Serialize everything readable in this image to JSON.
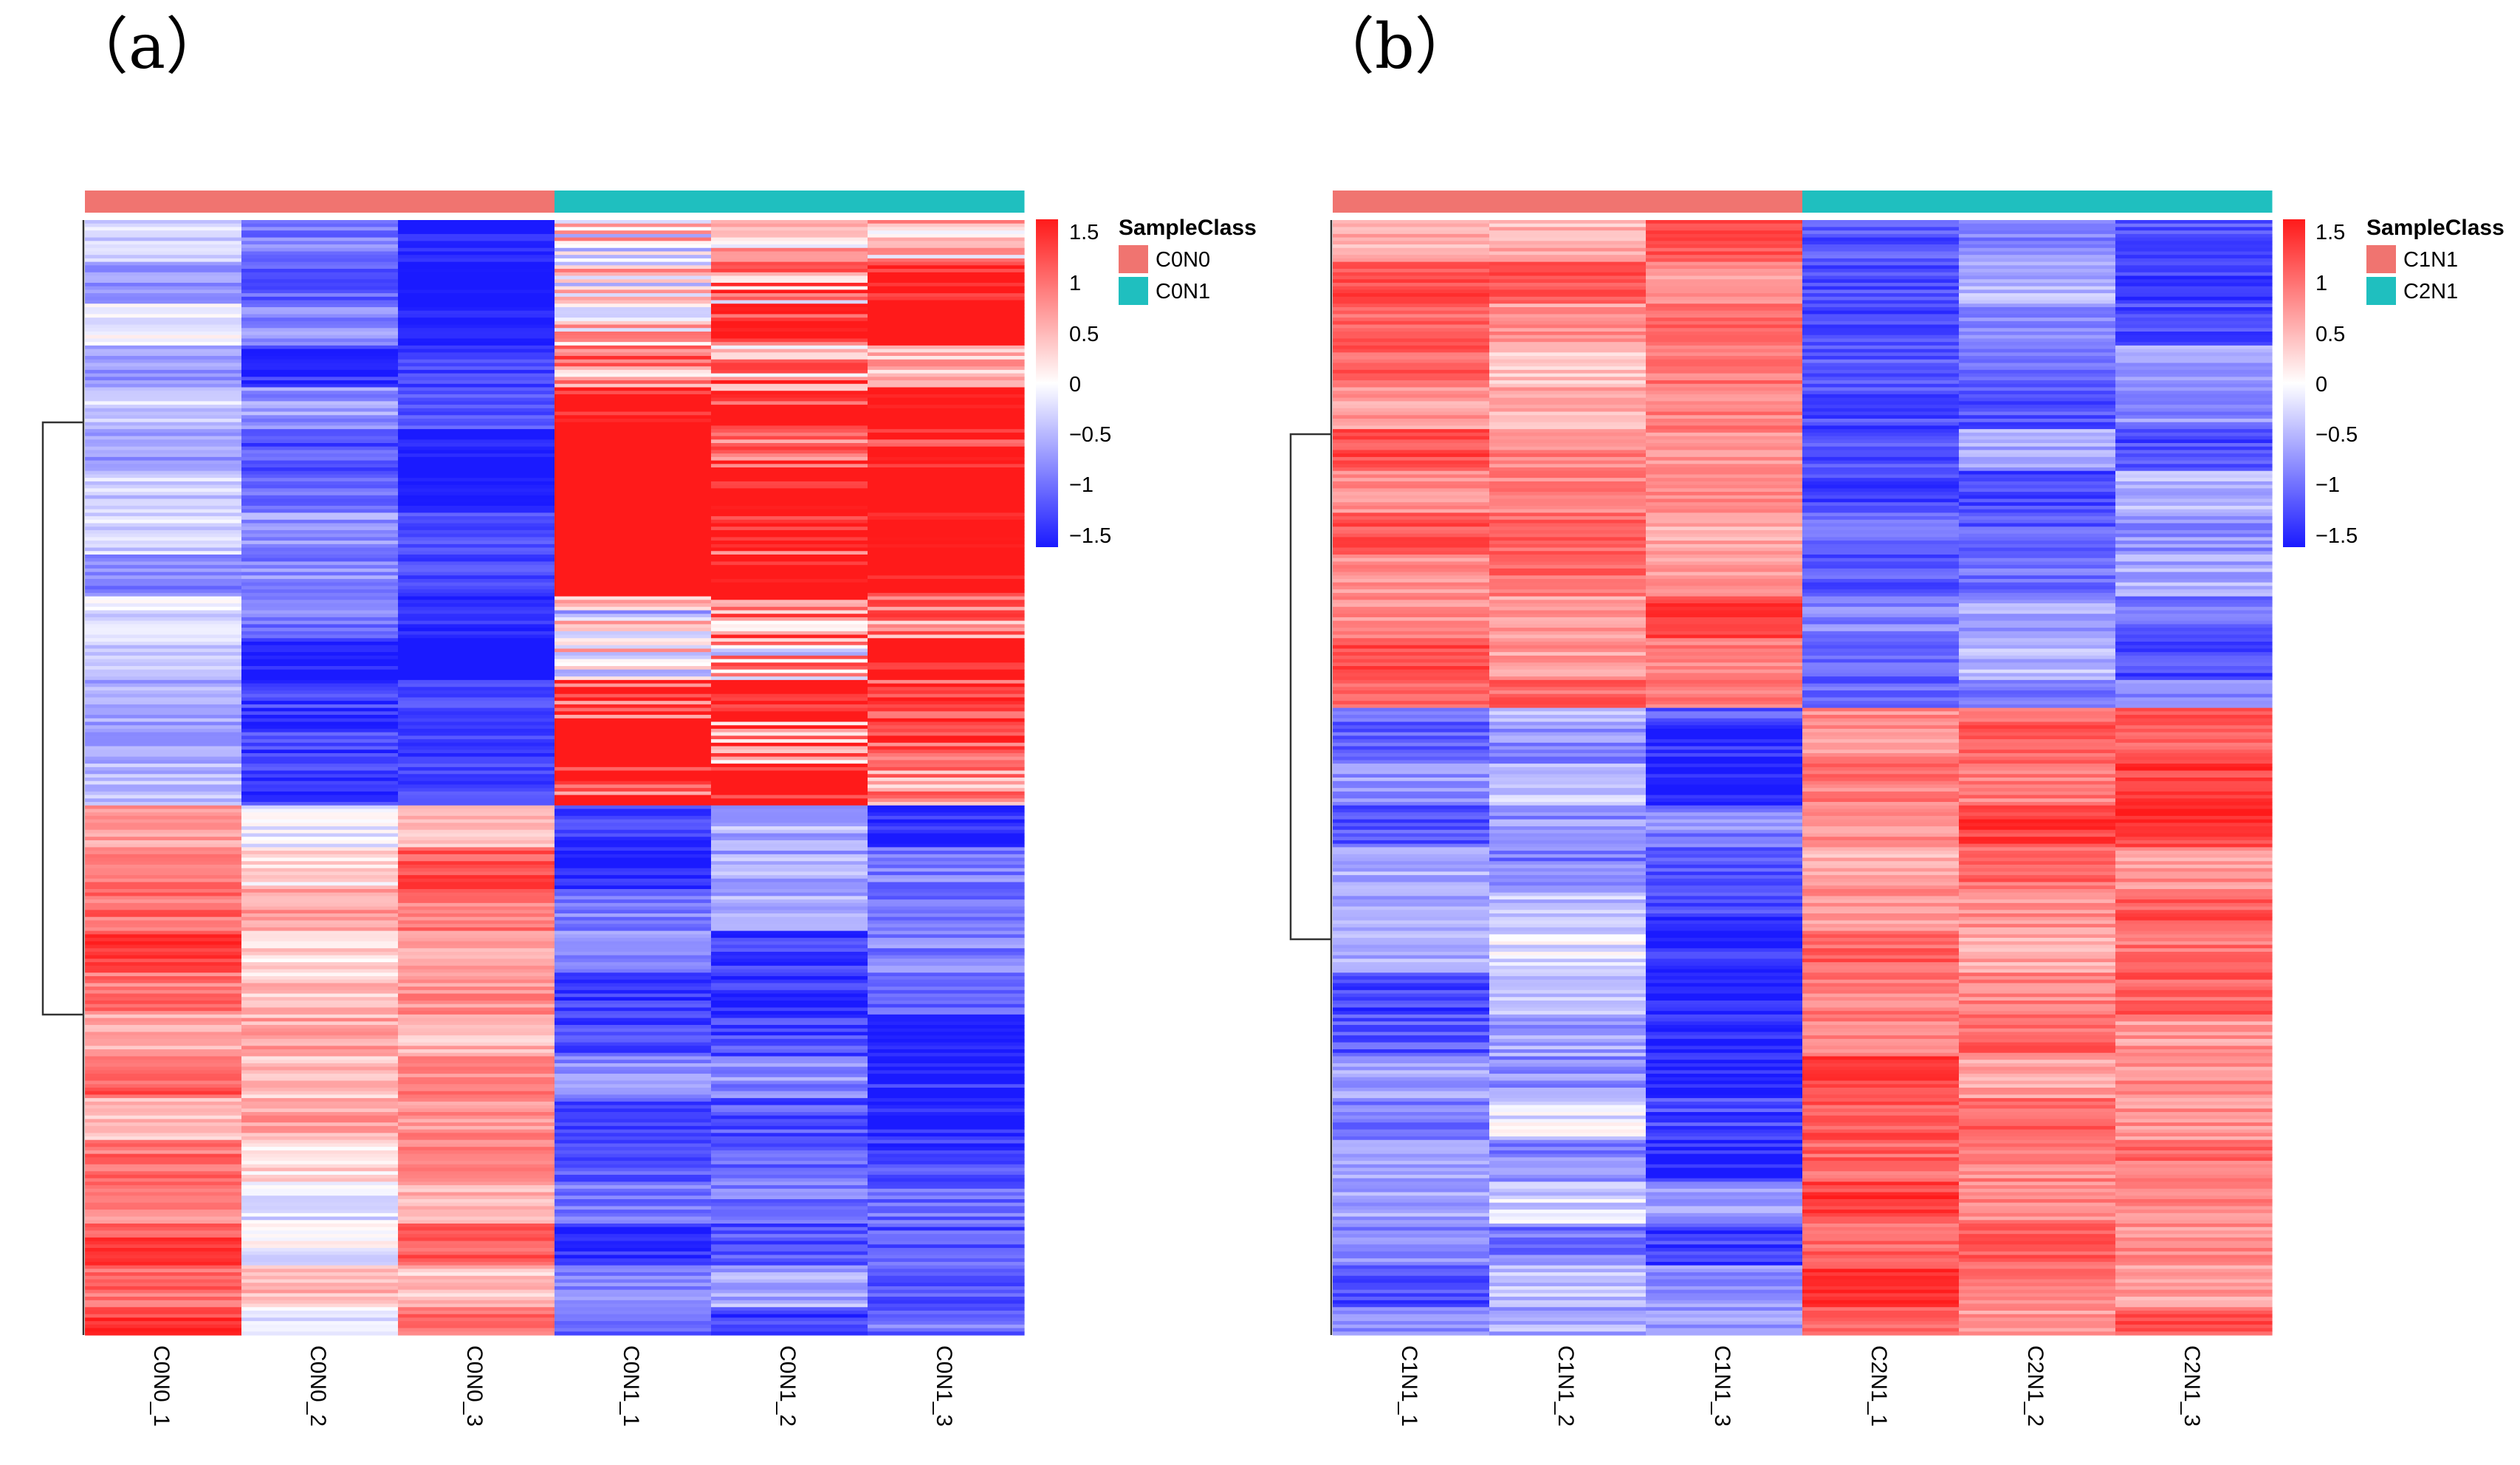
{
  "colors": {
    "low": "#1a1aff",
    "mid": "#ffffff",
    "high": "#ff1a1a"
  },
  "chart_data": [
    {
      "type": "heatmap",
      "panel_label": "（a）",
      "columns": [
        "C0N0_1",
        "C0N0_2",
        "C0N0_3",
        "C0N1_1",
        "C0N1_2",
        "C0N1_3"
      ],
      "column_groups": [
        "C0N0",
        "C0N0",
        "C0N0",
        "C0N1",
        "C0N1",
        "C0N1"
      ],
      "row_count": 320,
      "upregulated_in_second_group_rows": 152,
      "color_scale": {
        "min": -1.5,
        "max": 1.5,
        "ticks": [
          "1.5",
          "1",
          "0.5",
          "0",
          "−0.5",
          "−1",
          "−1.5"
        ]
      },
      "legend": {
        "title": "SampleClass",
        "items": [
          {
            "label": "C0N0",
            "color": "#f07470"
          },
          {
            "label": "C0N1",
            "color": "#1fbfbf"
          }
        ]
      },
      "column_block_means": [
        [
          [
            0.0,
            0.25,
            -0.45
          ],
          [
            -0.05,
            0.3,
            -1.05
          ],
          [
            -0.6,
            -0.2,
            -0.85
          ],
          [
            0.7,
            0.85,
            0.6
          ],
          [
            0.55,
            0.95,
            0.7
          ],
          [
            0.4,
            0.6,
            0.85
          ]
        ],
        [
          [
            0.0,
            0.28,
            0.85
          ],
          [
            -0.05,
            0.3,
            0.2
          ],
          [
            -0.2,
            0.26,
            1.0
          ],
          [
            -0.3,
            0.25,
            -0.75
          ],
          [
            -0.35,
            0.3,
            -0.6
          ],
          [
            -0.5,
            0.3,
            -0.7
          ]
        ]
      ]
    },
    {
      "type": "heatmap",
      "panel_label": "（b）",
      "columns": [
        "C1N1_1",
        "C1N1_2",
        "C1N1_3",
        "C2N1_1",
        "C2N1_2",
        "C2N1_3"
      ],
      "column_groups": [
        "C1N1",
        "C1N1",
        "C1N1",
        "C2N1",
        "C2N1",
        "C2N1"
      ],
      "row_count": 320,
      "upregulated_in_second_group_rows": 180,
      "color_scale": {
        "min": -1.5,
        "max": 1.5,
        "ticks": [
          "1.5",
          "1",
          "0.5",
          "0",
          "−0.5",
          "−1",
          "−1.5"
        ]
      },
      "legend": {
        "title": "SampleClass",
        "items": [
          {
            "label": "C1N1",
            "color": "#f07470"
          },
          {
            "label": "C2N1",
            "color": "#1fbfbf"
          }
        ]
      },
      "column_block_means": [
        [
          [
            0.0,
            0.22,
            0.85
          ],
          [
            0.0,
            0.25,
            0.7
          ],
          [
            0.0,
            0.22,
            0.9
          ],
          [
            0.0,
            0.25,
            -0.9
          ],
          [
            -0.1,
            0.25,
            -0.75
          ],
          [
            -0.1,
            0.25,
            -0.8
          ]
        ],
        [
          [
            -0.1,
            0.25,
            -0.8
          ],
          [
            -0.2,
            0.3,
            -0.4
          ],
          [
            -0.4,
            0.3,
            -0.7
          ],
          [
            0.0,
            0.25,
            0.85
          ],
          [
            0.0,
            0.25,
            0.9
          ],
          [
            0.0,
            0.25,
            0.95
          ]
        ]
      ]
    }
  ]
}
